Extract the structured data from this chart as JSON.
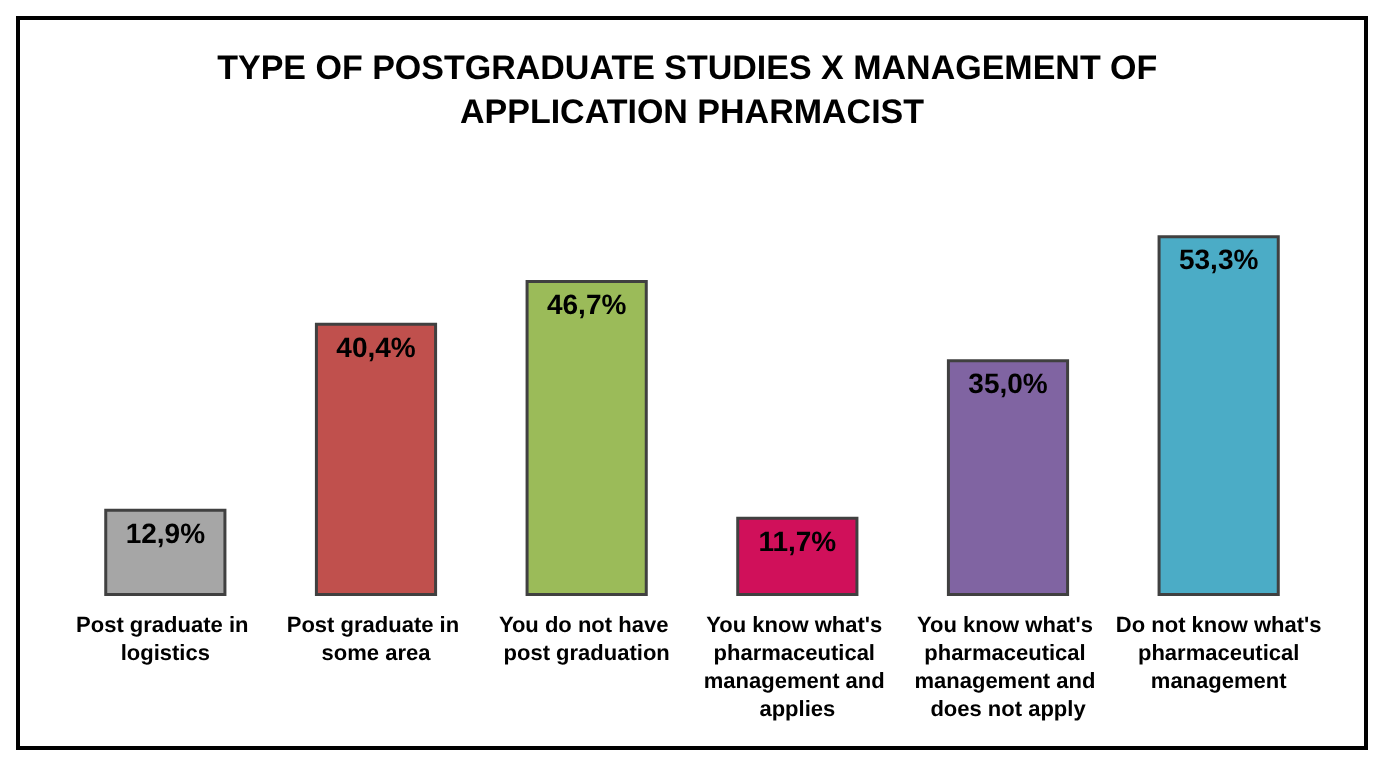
{
  "chart_data": {
    "type": "bar",
    "title": "TYPE OF POSTGRADUATE STUDIES X MANAGEMENT OF APPLICATION PHARMACIST",
    "categories": [
      "Post graduate in logistics",
      "Post graduate in some area",
      "You do not have post graduation",
      "You know what's pharmaceutical management and applies",
      "You know what's pharmaceutical management and does not apply",
      "Do not know what's pharmaceutical management"
    ],
    "values": [
      12.9,
      40.4,
      46.7,
      11.7,
      35.0,
      53.3
    ],
    "colors": [
      "#a6a6a6",
      "#c0504d",
      "#9bbb59",
      "#d0105a",
      "#8064a2",
      "#4bacc6"
    ],
    "value_labels": [
      "12,9%",
      "40,4%",
      "46,7%",
      "11,7%",
      "35,0%",
      "53,3%"
    ]
  }
}
